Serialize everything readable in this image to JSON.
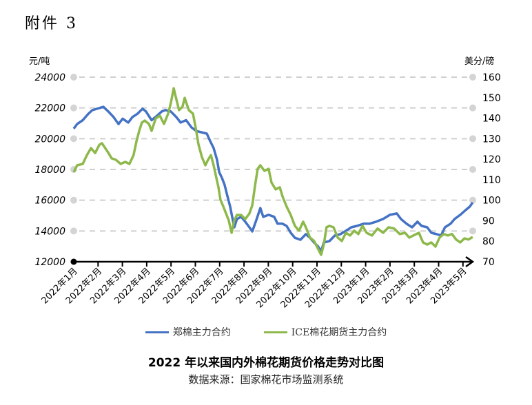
{
  "doc_label": "附件 3",
  "colors": {
    "zce": "#4472C4",
    "ice": "#8DB84A",
    "grid": "#CFCFCF",
    "axis": "#000000"
  },
  "chart_data": {
    "type": "line",
    "title": "2022 年以来国内外棉花期货价格走势对比图",
    "source": "数据来源：国家棉花市场监测系统",
    "xlabel": "",
    "ylabel_left": "元/吨",
    "ylabel_right": "美分/磅",
    "ylim_left": [
      12000,
      24000
    ],
    "ylim_right": [
      70,
      160
    ],
    "yticks_left": [
      24000,
      22000,
      20000,
      18000,
      16000,
      14000,
      12000
    ],
    "yticks_right": [
      160,
      150,
      140,
      130,
      120,
      110,
      100,
      90,
      80,
      70
    ],
    "categories": [
      "2022年1月",
      "2022年2月",
      "2022年3月",
      "2022年4月",
      "2022年5月",
      "2022年6月",
      "2022年7月",
      "2022年8月",
      "2022年9月",
      "2022年10月",
      "2022年11月",
      "2022年12月",
      "2023年1月",
      "2023年2月",
      "2023年3月",
      "2023年4月",
      "2023年5月"
    ],
    "grid": true,
    "legend_position": "bottom",
    "series": [
      {
        "name": "郑棉主力合约",
        "axis": "left",
        "color": "#4472C4",
        "points": [
          [
            0,
            20650
          ],
          [
            0.14,
            20950
          ],
          [
            0.37,
            21200
          ],
          [
            0.59,
            21600
          ],
          [
            0.76,
            21850
          ],
          [
            1.22,
            22070
          ],
          [
            1.45,
            21720
          ],
          [
            1.64,
            21400
          ],
          [
            1.84,
            20950
          ],
          [
            2.01,
            21300
          ],
          [
            2.24,
            21050
          ],
          [
            2.41,
            21400
          ],
          [
            2.63,
            21630
          ],
          [
            2.83,
            21950
          ],
          [
            2.97,
            21770
          ],
          [
            3.2,
            21200
          ],
          [
            3.43,
            21500
          ],
          [
            3.62,
            21770
          ],
          [
            3.77,
            21860
          ],
          [
            3.99,
            21770
          ],
          [
            4.22,
            21400
          ],
          [
            4.39,
            21050
          ],
          [
            4.62,
            21200
          ],
          [
            4.84,
            20730
          ],
          [
            5.04,
            20500
          ],
          [
            5.24,
            20420
          ],
          [
            5.47,
            20330
          ],
          [
            5.61,
            19840
          ],
          [
            5.75,
            19390
          ],
          [
            5.89,
            18630
          ],
          [
            5.98,
            17820
          ],
          [
            6.09,
            17460
          ],
          [
            6.2,
            17000
          ],
          [
            6.32,
            16250
          ],
          [
            6.43,
            15580
          ],
          [
            6.54,
            14690
          ],
          [
            6.6,
            14240
          ],
          [
            6.71,
            14780
          ],
          [
            6.88,
            14920
          ],
          [
            7.05,
            14600
          ],
          [
            7.22,
            14240
          ],
          [
            7.34,
            13970
          ],
          [
            7.5,
            14690
          ],
          [
            7.67,
            15490
          ],
          [
            7.79,
            14920
          ],
          [
            8.01,
            15050
          ],
          [
            8.24,
            14920
          ],
          [
            8.38,
            14470
          ],
          [
            8.58,
            14470
          ],
          [
            8.75,
            14330
          ],
          [
            8.92,
            13880
          ],
          [
            9.09,
            13560
          ],
          [
            9.32,
            13430
          ],
          [
            9.54,
            13790
          ],
          [
            9.71,
            13560
          ],
          [
            9.88,
            13250
          ],
          [
            10.05,
            12980
          ],
          [
            10.17,
            12670
          ],
          [
            10.28,
            13250
          ],
          [
            10.51,
            13340
          ],
          [
            10.73,
            13700
          ],
          [
            10.96,
            13790
          ],
          [
            11.19,
            14010
          ],
          [
            11.41,
            14240
          ],
          [
            11.64,
            14330
          ],
          [
            11.92,
            14470
          ],
          [
            12.15,
            14470
          ],
          [
            12.43,
            14600
          ],
          [
            12.72,
            14780
          ],
          [
            13,
            15050
          ],
          [
            13.28,
            15140
          ],
          [
            13.45,
            14780
          ],
          [
            13.68,
            14470
          ],
          [
            13.91,
            14240
          ],
          [
            14.13,
            14600
          ],
          [
            14.3,
            14330
          ],
          [
            14.53,
            14240
          ],
          [
            14.7,
            13880
          ],
          [
            14.93,
            13790
          ],
          [
            15.1,
            13700
          ],
          [
            15.26,
            14240
          ],
          [
            15.49,
            14470
          ],
          [
            15.66,
            14780
          ],
          [
            15.89,
            15050
          ],
          [
            16.11,
            15360
          ],
          [
            16.28,
            15580
          ],
          [
            16.4,
            15850
          ]
        ]
      },
      {
        "name": "ICE棉花期货主力合约",
        "axis": "right",
        "color": "#8DB84A",
        "points": [
          [
            0,
            113.7
          ],
          [
            0.14,
            117
          ],
          [
            0.37,
            117.7
          ],
          [
            0.54,
            122
          ],
          [
            0.71,
            125.4
          ],
          [
            0.88,
            123
          ],
          [
            1.05,
            127
          ],
          [
            1.16,
            127.8
          ],
          [
            1.39,
            123.7
          ],
          [
            1.56,
            120.4
          ],
          [
            1.73,
            119.7
          ],
          [
            1.93,
            117.7
          ],
          [
            2.12,
            118.7
          ],
          [
            2.29,
            117.7
          ],
          [
            2.46,
            122
          ],
          [
            2.58,
            128.8
          ],
          [
            2.69,
            133.8
          ],
          [
            2.8,
            137.8
          ],
          [
            2.92,
            138.8
          ],
          [
            3.09,
            137.2
          ],
          [
            3.2,
            133.8
          ],
          [
            3.37,
            139.9
          ],
          [
            3.54,
            141.2
          ],
          [
            3.71,
            137.2
          ],
          [
            3.88,
            142.2
          ],
          [
            3.99,
            147.2
          ],
          [
            4.11,
            154.6
          ],
          [
            4.19,
            150.6
          ],
          [
            4.33,
            143.9
          ],
          [
            4.47,
            145.6
          ],
          [
            4.56,
            149.9
          ],
          [
            4.73,
            143.9
          ],
          [
            4.9,
            142.2
          ],
          [
            5.01,
            135.5
          ],
          [
            5.13,
            127.1
          ],
          [
            5.27,
            121
          ],
          [
            5.41,
            117
          ],
          [
            5.52,
            119.7
          ],
          [
            5.64,
            122
          ],
          [
            5.75,
            117
          ],
          [
            5.86,
            111
          ],
          [
            5.95,
            106.3
          ],
          [
            6.03,
            100.2
          ],
          [
            6.15,
            96.9
          ],
          [
            6.26,
            93.5
          ],
          [
            6.37,
            90.2
          ],
          [
            6.49,
            84.1
          ],
          [
            6.6,
            90.2
          ],
          [
            6.71,
            92.8
          ],
          [
            6.88,
            92.8
          ],
          [
            7.05,
            90.8
          ],
          [
            7.22,
            93.5
          ],
          [
            7.34,
            97.5
          ],
          [
            7.45,
            106.9
          ],
          [
            7.56,
            115.3
          ],
          [
            7.67,
            117
          ],
          [
            7.84,
            114.3
          ],
          [
            8.01,
            115.3
          ],
          [
            8.13,
            108.6
          ],
          [
            8.3,
            105.3
          ],
          [
            8.47,
            106.3
          ],
          [
            8.58,
            101.9
          ],
          [
            8.75,
            96.9
          ],
          [
            8.92,
            92.8
          ],
          [
            9.09,
            87.5
          ],
          [
            9.26,
            85.1
          ],
          [
            9.43,
            89.5
          ],
          [
            9.54,
            86.8
          ],
          [
            9.71,
            81.8
          ],
          [
            9.88,
            80.1
          ],
          [
            10.05,
            76.1
          ],
          [
            10.17,
            73.4
          ],
          [
            10.28,
            78.4
          ],
          [
            10.39,
            86.8
          ],
          [
            10.51,
            87.5
          ],
          [
            10.68,
            86.8
          ],
          [
            10.85,
            81.8
          ],
          [
            11.02,
            80.1
          ],
          [
            11.19,
            84.1
          ],
          [
            11.36,
            82.8
          ],
          [
            11.53,
            85.1
          ],
          [
            11.7,
            83.5
          ],
          [
            11.87,
            87.5
          ],
          [
            12.04,
            84.1
          ],
          [
            12.26,
            82.8
          ],
          [
            12.49,
            86.2
          ],
          [
            12.72,
            84.1
          ],
          [
            12.94,
            86.8
          ],
          [
            13.17,
            86.2
          ],
          [
            13.4,
            83.5
          ],
          [
            13.62,
            84.1
          ],
          [
            13.79,
            81.8
          ],
          [
            13.96,
            82.8
          ],
          [
            14.19,
            84.1
          ],
          [
            14.36,
            79.4
          ],
          [
            14.53,
            78.4
          ],
          [
            14.7,
            79.4
          ],
          [
            14.87,
            77.4
          ],
          [
            15.04,
            81.8
          ],
          [
            15.21,
            83.5
          ],
          [
            15.38,
            82.8
          ],
          [
            15.55,
            83.5
          ],
          [
            15.72,
            80.8
          ],
          [
            15.89,
            79.4
          ],
          [
            16.06,
            81.4
          ],
          [
            16.23,
            80.8
          ],
          [
            16.4,
            82.1
          ]
        ]
      }
    ]
  }
}
